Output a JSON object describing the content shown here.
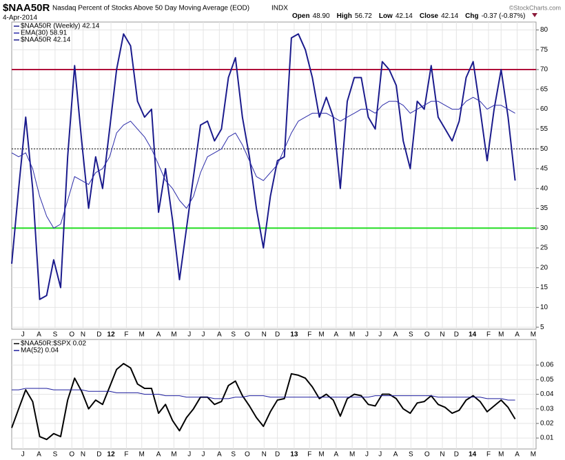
{
  "chart_data": [
    {
      "type": "line",
      "title": "$NAA50R",
      "subtitle": "Nasdaq Percent of Stocks Above 50 Day Moving Average (EOD)",
      "exchange": "INDX",
      "date": "4-Apr-2014",
      "quote": [
        [
          "Open",
          "48.90"
        ],
        [
          "High",
          "56.72"
        ],
        [
          "Low",
          "42.14"
        ],
        [
          "Close",
          "42.14"
        ],
        [
          "Chg",
          "-0.37 (-0.87%)"
        ]
      ],
      "source": "©StockCharts.com",
      "xlim": [
        0,
        75
      ],
      "xticks": [
        {
          "value": 1.6,
          "label": "J"
        },
        {
          "value": 3.9,
          "label": "A"
        },
        {
          "value": 6.2,
          "label": "S"
        },
        {
          "value": 8.6,
          "label": "O"
        },
        {
          "value": 10.2,
          "label": "N"
        },
        {
          "value": 12.5,
          "label": "D"
        },
        {
          "value": 14.2,
          "label": "12"
        },
        {
          "value": 16.4,
          "label": "F"
        },
        {
          "value": 18.6,
          "label": "M"
        },
        {
          "value": 21.0,
          "label": "A"
        },
        {
          "value": 23.2,
          "label": "M"
        },
        {
          "value": 25.4,
          "label": "J"
        },
        {
          "value": 27.4,
          "label": "J"
        },
        {
          "value": 29.7,
          "label": "A"
        },
        {
          "value": 31.7,
          "label": "S"
        },
        {
          "value": 33.7,
          "label": "O"
        },
        {
          "value": 36.1,
          "label": "N"
        },
        {
          "value": 38.0,
          "label": "D"
        },
        {
          "value": 40.4,
          "label": "13"
        },
        {
          "value": 42.6,
          "label": "F"
        },
        {
          "value": 44.3,
          "label": "M"
        },
        {
          "value": 46.4,
          "label": "A"
        },
        {
          "value": 48.7,
          "label": "M"
        },
        {
          "value": 50.8,
          "label": "J"
        },
        {
          "value": 52.7,
          "label": "J"
        },
        {
          "value": 54.9,
          "label": "A"
        },
        {
          "value": 57.1,
          "label": "S"
        },
        {
          "value": 59.4,
          "label": "O"
        },
        {
          "value": 61.6,
          "label": "N"
        },
        {
          "value": 63.6,
          "label": "D"
        },
        {
          "value": 65.9,
          "label": "14"
        },
        {
          "value": 68.2,
          "label": "F"
        },
        {
          "value": 70.0,
          "label": "M"
        },
        {
          "value": 72.3,
          "label": "A"
        },
        {
          "value": 74.6,
          "label": "M"
        }
      ],
      "ylim": [
        4.5,
        82
      ],
      "yticks": [
        5,
        10,
        15,
        20,
        25,
        30,
        35,
        40,
        45,
        50,
        55,
        60,
        65,
        70,
        75,
        80
      ],
      "grid": true,
      "reference_lines": [
        {
          "value": 70,
          "color": "#b0103a",
          "style": "solid"
        },
        {
          "value": 30,
          "color": "#22dd22",
          "style": "solid"
        },
        {
          "value": 50,
          "color": "#000000",
          "style": "dotted"
        }
      ],
      "series": [
        {
          "name": "$NAA50R (Weekly) 42.14",
          "color": "#1a1a8c",
          "width": 2,
          "values": [
            21,
            40,
            58,
            40,
            12,
            13,
            22,
            15,
            48,
            71,
            52,
            35,
            48,
            40,
            55,
            70,
            79,
            76,
            62,
            58,
            60,
            34,
            45,
            32,
            17,
            30,
            43,
            56,
            57,
            52,
            55,
            68,
            73,
            58,
            48,
            35,
            25,
            38,
            47,
            48,
            78,
            79,
            75,
            68,
            58,
            63,
            58,
            40,
            62,
            68,
            68,
            58,
            55,
            72,
            70,
            66,
            52,
            45,
            62,
            60,
            71,
            58,
            55,
            52,
            57,
            68,
            72,
            60,
            47,
            60,
            70,
            58,
            42
          ]
        },
        {
          "name": "EMA(30) 58.91",
          "color": "#2a2aa8",
          "width": 1,
          "values": [
            49,
            48,
            49,
            45,
            38,
            33,
            30,
            31,
            37,
            43,
            42,
            41,
            44,
            45,
            48,
            54,
            56,
            57,
            55,
            53,
            50,
            46,
            42,
            40,
            37,
            35,
            38,
            44,
            48,
            49,
            50,
            53,
            54,
            51,
            47,
            43,
            42,
            44,
            46,
            50,
            54,
            57,
            58,
            59,
            59,
            59,
            58,
            57,
            58,
            59,
            60,
            60,
            59,
            61,
            62,
            62,
            61,
            59,
            60,
            61,
            62,
            62,
            61,
            60,
            60,
            62,
            63,
            62,
            60,
            61,
            61,
            60,
            59
          ]
        }
      ],
      "legend_extra": "$NAA50R 42.14"
    },
    {
      "type": "line",
      "xlim": [
        0,
        75
      ],
      "ylim": [
        0.0025,
        0.0775
      ],
      "yticks": [
        0.01,
        0.02,
        0.03,
        0.04,
        0.05,
        0.06
      ],
      "grid": true,
      "series": [
        {
          "name": "$NAA50R:$SPX 0.02",
          "color": "#000000",
          "width": 2,
          "values": [
            0.017,
            0.03,
            0.043,
            0.035,
            0.011,
            0.009,
            0.013,
            0.011,
            0.036,
            0.051,
            0.042,
            0.03,
            0.036,
            0.033,
            0.045,
            0.057,
            0.061,
            0.058,
            0.047,
            0.044,
            0.044,
            0.027,
            0.033,
            0.022,
            0.015,
            0.024,
            0.03,
            0.038,
            0.038,
            0.033,
            0.035,
            0.046,
            0.049,
            0.039,
            0.032,
            0.024,
            0.018,
            0.028,
            0.036,
            0.037,
            0.054,
            0.053,
            0.051,
            0.045,
            0.037,
            0.04,
            0.036,
            0.025,
            0.037,
            0.04,
            0.039,
            0.033,
            0.032,
            0.04,
            0.04,
            0.037,
            0.03,
            0.027,
            0.034,
            0.035,
            0.039,
            0.033,
            0.031,
            0.027,
            0.029,
            0.036,
            0.039,
            0.035,
            0.028,
            0.032,
            0.036,
            0.031,
            0.023
          ]
        },
        {
          "name": "MA(52) 0.04",
          "color": "#1a1a9c",
          "width": 1,
          "values": [
            0.043,
            0.043,
            0.044,
            0.044,
            0.044,
            0.044,
            0.043,
            0.043,
            0.043,
            0.043,
            0.043,
            0.042,
            0.042,
            0.042,
            0.042,
            0.041,
            0.041,
            0.041,
            0.041,
            0.04,
            0.04,
            0.04,
            0.039,
            0.039,
            0.039,
            0.038,
            0.038,
            0.038,
            0.038,
            0.037,
            0.037,
            0.037,
            0.038,
            0.038,
            0.039,
            0.039,
            0.039,
            0.038,
            0.038,
            0.038,
            0.038,
            0.038,
            0.038,
            0.038,
            0.038,
            0.038,
            0.038,
            0.038,
            0.038,
            0.038,
            0.038,
            0.038,
            0.039,
            0.039,
            0.039,
            0.039,
            0.039,
            0.039,
            0.039,
            0.039,
            0.039,
            0.038,
            0.038,
            0.038,
            0.038,
            0.038,
            0.038,
            0.038,
            0.037,
            0.037,
            0.037,
            0.036,
            0.036
          ]
        }
      ]
    }
  ]
}
